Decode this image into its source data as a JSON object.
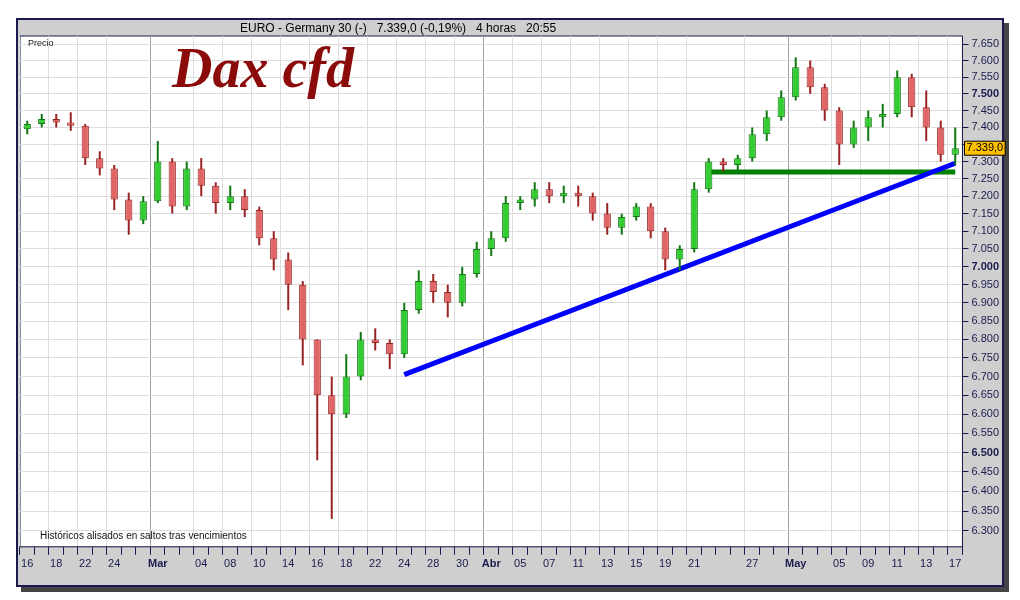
{
  "chart_data": {
    "type": "candlestick",
    "title": "Dax cfd",
    "subtitle": "EURO - Germany 30 (-)   7.339,0 (-0,19%)   4 horas   20:55",
    "ylabel": "Precio",
    "annotations": [
      "Históricos alisados en saltos tras vencimientos",
      {
        "text": "7.339,0",
        "x": "17",
        "y": 7339
      }
    ],
    "log": true,
    "grid": true,
    "legend": false,
    "ylim": [
      6260,
      7675
    ],
    "yticks": [
      {
        "value": 6300,
        "label": "6.300"
      },
      {
        "value": 6350,
        "label": "6.350"
      },
      {
        "value": 6400,
        "label": "6.400"
      },
      {
        "value": 6450,
        "label": "6.450"
      },
      {
        "value": 6500,
        "label": "6.500"
      },
      {
        "value": 6550,
        "label": "6.550"
      },
      {
        "value": 6600,
        "label": "6.600"
      },
      {
        "value": 6650,
        "label": "6.650"
      },
      {
        "value": 6700,
        "label": "6.700"
      },
      {
        "value": 6750,
        "label": "6.750"
      },
      {
        "value": 6800,
        "label": "6.800"
      },
      {
        "value": 6850,
        "label": "6.850"
      },
      {
        "value": 6900,
        "label": "6.900"
      },
      {
        "value": 6950,
        "label": "6.950"
      },
      {
        "value": 7000,
        "label": "7.000"
      },
      {
        "value": 7050,
        "label": "7.050"
      },
      {
        "value": 7100,
        "label": "7.100"
      },
      {
        "value": 7150,
        "label": "7.150"
      },
      {
        "value": 7200,
        "label": "7.200"
      },
      {
        "value": 7250,
        "label": "7.250"
      },
      {
        "value": 7300,
        "label": "7.300"
      },
      {
        "value": 7350,
        "label": null
      },
      {
        "value": 7400,
        "label": "7.400"
      },
      {
        "value": 7450,
        "label": "7.450"
      },
      {
        "value": 7500,
        "label": "7.500"
      },
      {
        "value": 7550,
        "label": "7.550"
      },
      {
        "value": 7600,
        "label": "7.600"
      },
      {
        "value": 7650,
        "label": "7.650"
      }
    ],
    "categories": [
      "16",
      null,
      "18",
      null,
      "22",
      null,
      "24",
      null,
      null,
      "Mar",
      null,
      null,
      "04",
      null,
      "08",
      null,
      "10",
      null,
      "14",
      null,
      "16",
      null,
      "18",
      null,
      "22",
      null,
      "24",
      null,
      "28",
      null,
      "30",
      null,
      "Abr",
      null,
      "05",
      null,
      "07",
      null,
      "11",
      null,
      "13",
      null,
      "15",
      null,
      "19",
      null,
      "21",
      null,
      null,
      null,
      "27",
      null,
      null,
      "May",
      null,
      null,
      "05",
      null,
      "09",
      null,
      "11",
      null,
      "13",
      null,
      "17"
    ],
    "ohlc": [
      [
        7395,
        7420,
        7380,
        7410
      ],
      [
        7410,
        7440,
        7400,
        7425
      ],
      [
        7425,
        7440,
        7400,
        7415
      ],
      [
        7415,
        7445,
        7390,
        7405
      ],
      [
        7405,
        7410,
        7290,
        7310
      ],
      [
        7310,
        7330,
        7260,
        7280
      ],
      [
        7280,
        7290,
        7160,
        7190
      ],
      [
        7190,
        7210,
        7090,
        7130
      ],
      [
        7130,
        7200,
        7120,
        7185
      ],
      [
        7185,
        7360,
        7180,
        7300
      ],
      [
        7300,
        7310,
        7150,
        7170
      ],
      [
        7170,
        7300,
        7160,
        7280
      ],
      [
        7280,
        7310,
        7200,
        7230
      ],
      [
        7230,
        7240,
        7150,
        7180
      ],
      [
        7180,
        7230,
        7160,
        7200
      ],
      [
        7200,
        7220,
        7140,
        7160
      ],
      [
        7160,
        7170,
        7060,
        7080
      ],
      [
        7080,
        7100,
        6990,
        7020
      ],
      [
        7020,
        7040,
        6880,
        6950
      ],
      [
        6950,
        6960,
        6730,
        6800
      ],
      [
        6800,
        6800,
        6480,
        6650
      ],
      [
        6650,
        6700,
        6330,
        6600
      ],
      [
        6600,
        6760,
        6590,
        6700
      ],
      [
        6700,
        6820,
        6690,
        6800
      ],
      [
        6800,
        6830,
        6770,
        6790
      ],
      [
        6790,
        6800,
        6720,
        6760
      ],
      [
        6760,
        6900,
        6750,
        6880
      ],
      [
        6880,
        6990,
        6870,
        6960
      ],
      [
        6960,
        6980,
        6900,
        6930
      ],
      [
        6930,
        6950,
        6860,
        6900
      ],
      [
        6900,
        7000,
        6890,
        6980
      ],
      [
        6980,
        7070,
        6970,
        7050
      ],
      [
        7050,
        7100,
        7030,
        7080
      ],
      [
        7080,
        7200,
        7070,
        7180
      ],
      [
        7180,
        7200,
        7160,
        7190
      ],
      [
        7190,
        7240,
        7170,
        7220
      ],
      [
        7220,
        7240,
        7180,
        7200
      ],
      [
        7200,
        7230,
        7180,
        7210
      ],
      [
        7210,
        7230,
        7170,
        7200
      ],
      [
        7200,
        7210,
        7130,
        7150
      ],
      [
        7150,
        7180,
        7090,
        7110
      ],
      [
        7110,
        7150,
        7090,
        7140
      ],
      [
        7140,
        7180,
        7130,
        7170
      ],
      [
        7170,
        7180,
        7080,
        7100
      ],
      [
        7100,
        7110,
        6990,
        7020
      ],
      [
        7020,
        7060,
        6990,
        7050
      ],
      [
        7050,
        7240,
        7040,
        7220
      ],
      [
        7220,
        7310,
        7210,
        7300
      ],
      [
        7300,
        7310,
        7270,
        7290
      ],
      [
        7290,
        7320,
        7270,
        7310
      ],
      [
        7310,
        7400,
        7300,
        7380
      ],
      [
        7380,
        7450,
        7360,
        7430
      ],
      [
        7430,
        7510,
        7420,
        7490
      ],
      [
        7490,
        7610,
        7480,
        7580
      ],
      [
        7580,
        7600,
        7500,
        7520
      ],
      [
        7520,
        7530,
        7420,
        7450
      ],
      [
        7450,
        7460,
        7290,
        7350
      ],
      [
        7350,
        7420,
        7340,
        7400
      ],
      [
        7400,
        7450,
        7360,
        7430
      ],
      [
        7430,
        7470,
        7400,
        7440
      ],
      [
        7440,
        7570,
        7430,
        7550
      ],
      [
        7550,
        7560,
        7430,
        7460
      ],
      [
        7460,
        7510,
        7360,
        7400
      ],
      [
        7400,
        7420,
        7300,
        7320
      ],
      [
        7320,
        7400,
        7290,
        7339
      ]
    ],
    "series": [
      {
        "type": "line",
        "color": "#0000ff",
        "values": [
          null,
          null,
          null,
          null,
          null,
          null,
          null,
          null,
          null,
          null,
          null,
          null,
          null,
          null,
          null,
          null,
          null,
          null,
          null,
          null,
          null,
          null,
          null,
          null,
          null,
          null,
          6705,
          null,
          null,
          null,
          null,
          null,
          null,
          null,
          null,
          null,
          null,
          null,
          null,
          null,
          null,
          null,
          null,
          null,
          null,
          null,
          null,
          null,
          null,
          null,
          null,
          null,
          null,
          null,
          null,
          null,
          null,
          null,
          null,
          null,
          null,
          null,
          null,
          null,
          7295
        ]
      },
      {
        "type": "line",
        "color": "#008000",
        "values": [
          null,
          null,
          null,
          null,
          null,
          null,
          null,
          null,
          null,
          null,
          null,
          null,
          null,
          null,
          null,
          null,
          null,
          null,
          null,
          null,
          null,
          null,
          null,
          null,
          null,
          null,
          null,
          null,
          null,
          null,
          null,
          null,
          null,
          null,
          null,
          null,
          null,
          null,
          null,
          null,
          null,
          null,
          null,
          null,
          null,
          null,
          null,
          7270,
          null,
          null,
          null,
          null,
          null,
          null,
          null,
          null,
          null,
          null,
          null,
          null,
          null,
          null,
          null,
          null,
          7270
        ]
      }
    ]
  }
}
